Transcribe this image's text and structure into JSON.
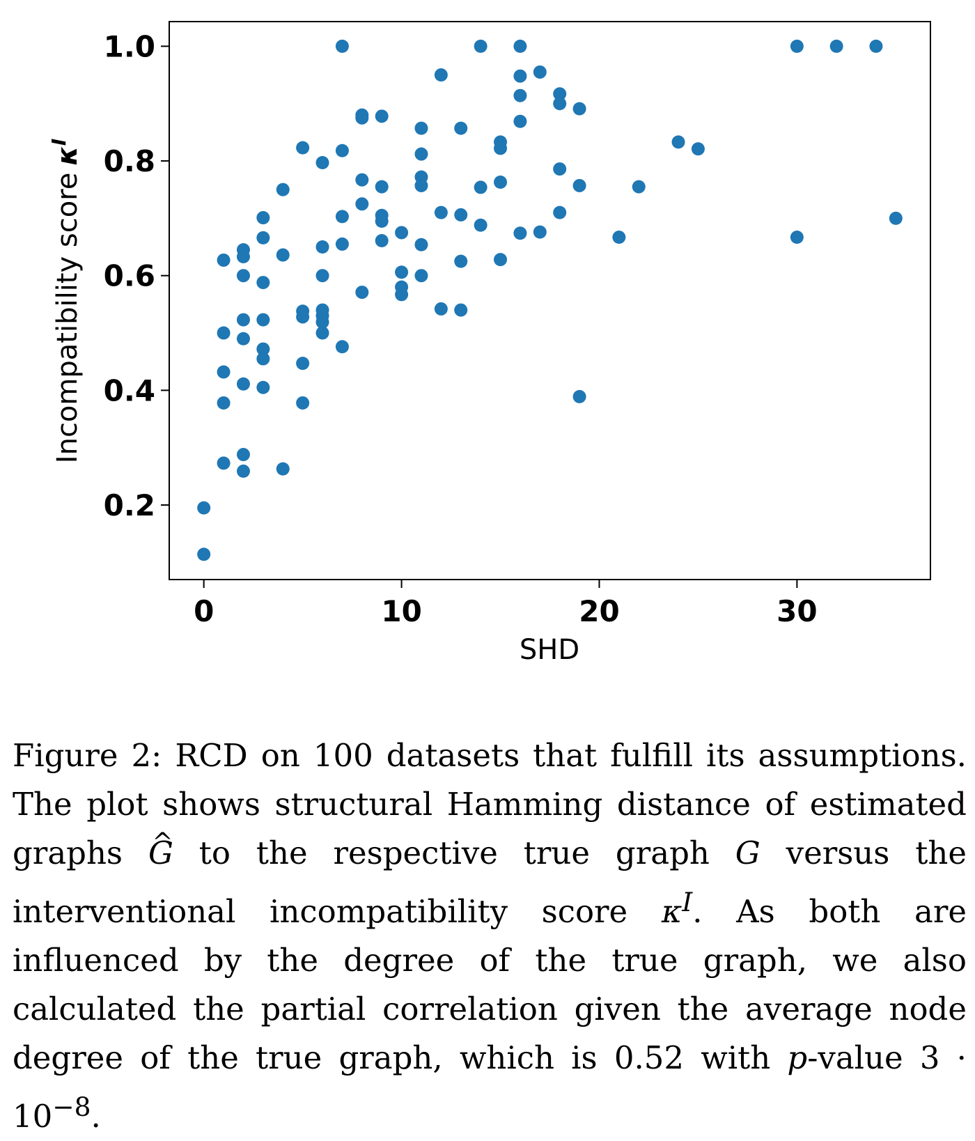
{
  "chart_data": {
    "type": "scatter",
    "xlabel": "SHD",
    "ylabel": "Incompatibility score",
    "ylabel_symbol": "κ",
    "ylabel_superscript": "I",
    "xlim": [
      -1.75,
      36.75
    ],
    "ylim": [
      0.07,
      1.043
    ],
    "x_ticks": [
      0,
      10,
      20,
      30
    ],
    "y_ticks": [
      0.2,
      0.4,
      0.6,
      0.8,
      1.0
    ],
    "x_tick_labels": [
      "0",
      "10",
      "20",
      "30"
    ],
    "y_tick_labels": [
      "0.2",
      "0.4",
      "0.6",
      "0.8",
      "1.0"
    ],
    "grid": false,
    "marker_color": "#1f77b4",
    "points": [
      {
        "x": 0,
        "y": 0.195
      },
      {
        "x": 0,
        "y": 0.114
      },
      {
        "x": 1,
        "y": 0.627
      },
      {
        "x": 1,
        "y": 0.5
      },
      {
        "x": 1,
        "y": 0.432
      },
      {
        "x": 1,
        "y": 0.378
      },
      {
        "x": 1,
        "y": 0.273
      },
      {
        "x": 2,
        "y": 0.645
      },
      {
        "x": 2,
        "y": 0.633
      },
      {
        "x": 2,
        "y": 0.6
      },
      {
        "x": 2,
        "y": 0.523
      },
      {
        "x": 2,
        "y": 0.49
      },
      {
        "x": 2,
        "y": 0.411
      },
      {
        "x": 2,
        "y": 0.288
      },
      {
        "x": 2,
        "y": 0.259
      },
      {
        "x": 3,
        "y": 0.701
      },
      {
        "x": 3,
        "y": 0.666
      },
      {
        "x": 3,
        "y": 0.588
      },
      {
        "x": 3,
        "y": 0.523
      },
      {
        "x": 3,
        "y": 0.472
      },
      {
        "x": 3,
        "y": 0.455
      },
      {
        "x": 3,
        "y": 0.405
      },
      {
        "x": 4,
        "y": 0.75
      },
      {
        "x": 4,
        "y": 0.636
      },
      {
        "x": 4,
        "y": 0.263
      },
      {
        "x": 5,
        "y": 0.823
      },
      {
        "x": 5,
        "y": 0.538
      },
      {
        "x": 5,
        "y": 0.528
      },
      {
        "x": 5,
        "y": 0.447
      },
      {
        "x": 5,
        "y": 0.378
      },
      {
        "x": 6,
        "y": 0.797
      },
      {
        "x": 6,
        "y": 0.65
      },
      {
        "x": 6,
        "y": 0.6
      },
      {
        "x": 6,
        "y": 0.54
      },
      {
        "x": 6,
        "y": 0.53
      },
      {
        "x": 6,
        "y": 0.519
      },
      {
        "x": 6,
        "y": 0.5
      },
      {
        "x": 7,
        "y": 1.0
      },
      {
        "x": 7,
        "y": 0.818
      },
      {
        "x": 7,
        "y": 0.703
      },
      {
        "x": 7,
        "y": 0.655
      },
      {
        "x": 7,
        "y": 0.476
      },
      {
        "x": 8,
        "y": 0.88
      },
      {
        "x": 8,
        "y": 0.875
      },
      {
        "x": 8,
        "y": 0.767
      },
      {
        "x": 8,
        "y": 0.725
      },
      {
        "x": 8,
        "y": 0.571
      },
      {
        "x": 9,
        "y": 0.878
      },
      {
        "x": 9,
        "y": 0.755
      },
      {
        "x": 9,
        "y": 0.705
      },
      {
        "x": 9,
        "y": 0.695
      },
      {
        "x": 9,
        "y": 0.661
      },
      {
        "x": 10,
        "y": 0.675
      },
      {
        "x": 10,
        "y": 0.606
      },
      {
        "x": 10,
        "y": 0.58
      },
      {
        "x": 10,
        "y": 0.567
      },
      {
        "x": 11,
        "y": 0.857
      },
      {
        "x": 11,
        "y": 0.812
      },
      {
        "x": 11,
        "y": 0.772
      },
      {
        "x": 11,
        "y": 0.757
      },
      {
        "x": 11,
        "y": 0.654
      },
      {
        "x": 11,
        "y": 0.6
      },
      {
        "x": 12,
        "y": 0.95
      },
      {
        "x": 12,
        "y": 0.71
      },
      {
        "x": 12,
        "y": 0.542
      },
      {
        "x": 13,
        "y": 0.857
      },
      {
        "x": 13,
        "y": 0.706
      },
      {
        "x": 13,
        "y": 0.625
      },
      {
        "x": 13,
        "y": 0.54
      },
      {
        "x": 14,
        "y": 1.0
      },
      {
        "x": 14,
        "y": 0.754
      },
      {
        "x": 14,
        "y": 0.688
      },
      {
        "x": 15,
        "y": 0.833
      },
      {
        "x": 15,
        "y": 0.822
      },
      {
        "x": 15,
        "y": 0.763
      },
      {
        "x": 15,
        "y": 0.628
      },
      {
        "x": 16,
        "y": 1.0
      },
      {
        "x": 16,
        "y": 0.948
      },
      {
        "x": 16,
        "y": 0.914
      },
      {
        "x": 16,
        "y": 0.869
      },
      {
        "x": 16,
        "y": 0.674
      },
      {
        "x": 17,
        "y": 0.955
      },
      {
        "x": 17,
        "y": 0.676
      },
      {
        "x": 18,
        "y": 0.917
      },
      {
        "x": 18,
        "y": 0.9
      },
      {
        "x": 18,
        "y": 0.786
      },
      {
        "x": 18,
        "y": 0.71
      },
      {
        "x": 19,
        "y": 0.891
      },
      {
        "x": 19,
        "y": 0.757
      },
      {
        "x": 19,
        "y": 0.389
      },
      {
        "x": 21,
        "y": 0.667
      },
      {
        "x": 22,
        "y": 0.755
      },
      {
        "x": 24,
        "y": 0.833
      },
      {
        "x": 25,
        "y": 0.821
      },
      {
        "x": 30,
        "y": 1.0
      },
      {
        "x": 30,
        "y": 0.667
      },
      {
        "x": 32,
        "y": 1.0
      },
      {
        "x": 34,
        "y": 1.0
      },
      {
        "x": 35,
        "y": 0.7
      }
    ]
  },
  "caption": {
    "fig_label": "Figure 2:",
    "part1": " RCD on 100 datasets that fulfill its assumptions. The plot shows structural Hamming distance of estimated graphs ",
    "ghat": "G",
    "part2": " to the respective true graph ",
    "g": "G",
    "part3": " versus the interventional incompatibility score ",
    "kappa": "κ",
    "kappa_sup": "I",
    "part4": ". As both are influenced by the degree of the true graph, we also calculated the partial correlation given the average node degree of the true graph, which is 0.52 with ",
    "p": "p",
    "part5": "-value 3 · 10",
    "exp": "−8",
    "part6": "."
  }
}
